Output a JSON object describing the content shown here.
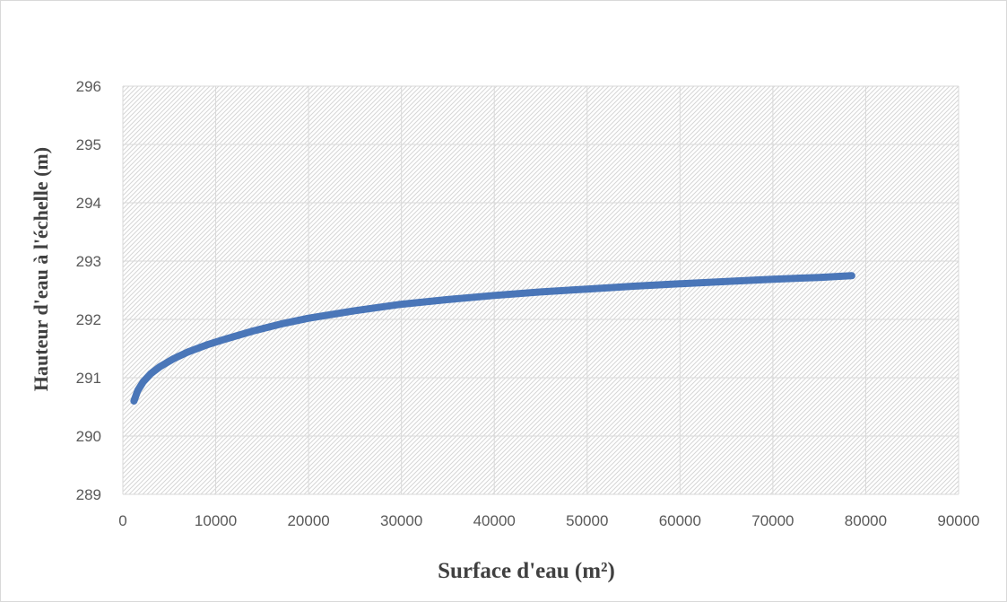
{
  "chart_data": {
    "type": "line",
    "title": "",
    "xlabel": "Surface d'eau (m²)",
    "ylabel": "Hauteur d'eau à l'échelle (m)",
    "xlim": [
      0,
      90000
    ],
    "ylim": [
      289,
      296
    ],
    "xticks": [
      "0",
      "10000",
      "20000",
      "30000",
      "40000",
      "50000",
      "60000",
      "70000",
      "80000",
      "90000"
    ],
    "yticks": [
      "289",
      "290",
      "291",
      "292",
      "293",
      "294",
      "295",
      "296"
    ],
    "grid": true,
    "legend": "none",
    "series": [
      {
        "color": "#4a76b8",
        "x": [
          1200,
          1600,
          2200,
          3000,
          4000,
          5500,
          7000,
          9000,
          11000,
          14000,
          17000,
          20000,
          25000,
          30000,
          35000,
          40000,
          45000,
          50000,
          55000,
          60000,
          65000,
          70000,
          75000,
          78500
        ],
        "y": [
          290.6,
          290.78,
          290.93,
          291.07,
          291.19,
          291.33,
          291.44,
          291.56,
          291.66,
          291.8,
          291.92,
          292.02,
          292.15,
          292.26,
          292.34,
          292.41,
          292.47,
          292.52,
          292.57,
          292.61,
          292.65,
          292.69,
          292.72,
          292.75
        ]
      }
    ]
  }
}
